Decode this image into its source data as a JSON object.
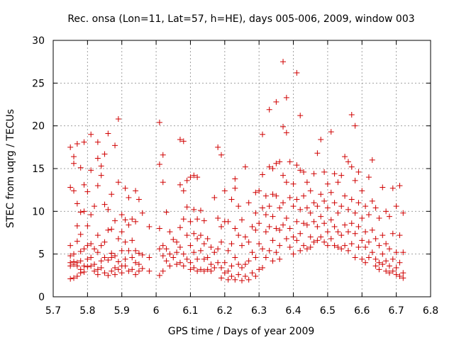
{
  "chart_data": {
    "type": "scatter",
    "title": "Rec. onsa (Lon=11, Lat=57, h=HE), days 005-006, 2009, window 003",
    "xlabel": "GPS time / Days of year 2009",
    "ylabel": "STEC from uqrg / TECUs",
    "xlim": [
      5.7,
      6.8
    ],
    "ylim": [
      0,
      30
    ],
    "xticks": [
      "5.7",
      "5.8",
      "5.9",
      "6",
      "6.1",
      "6.2",
      "6.3",
      "6.4",
      "6.5",
      "6.6",
      "6.7",
      "6.8"
    ],
    "yticks": [
      "0",
      "5",
      "10",
      "15",
      "20",
      "25",
      "30"
    ],
    "grid": true,
    "marker": "+",
    "colors": {
      "points": "#d00000",
      "axes": "#000000",
      "grid": "#a0a0a0"
    },
    "points": [
      [
        5.75,
        17.5
      ],
      [
        5.75,
        12.8
      ],
      [
        5.75,
        6.0
      ],
      [
        5.75,
        4.8
      ],
      [
        5.75,
        4.0
      ],
      [
        5.75,
        3.6
      ],
      [
        5.75,
        2.1
      ],
      [
        5.76,
        16.4
      ],
      [
        5.76,
        15.6
      ],
      [
        5.76,
        12.4
      ],
      [
        5.76,
        5.0
      ],
      [
        5.76,
        4.1
      ],
      [
        5.76,
        3.8
      ],
      [
        5.76,
        2.2
      ],
      [
        5.77,
        17.9
      ],
      [
        5.77,
        10.9
      ],
      [
        5.77,
        8.3
      ],
      [
        5.77,
        6.5
      ],
      [
        5.77,
        4.0
      ],
      [
        5.77,
        3.6
      ],
      [
        5.77,
        2.4
      ],
      [
        5.78,
        15.1
      ],
      [
        5.78,
        9.9
      ],
      [
        5.78,
        7.3
      ],
      [
        5.78,
        5.3
      ],
      [
        5.78,
        4.2
      ],
      [
        5.78,
        3.2
      ],
      [
        5.78,
        2.8
      ],
      [
        5.79,
        18.1
      ],
      [
        5.79,
        13.1
      ],
      [
        5.79,
        10.0
      ],
      [
        5.79,
        5.6
      ],
      [
        5.79,
        3.6
      ],
      [
        5.79,
        2.9
      ],
      [
        5.8,
        12.3
      ],
      [
        5.8,
        8.3
      ],
      [
        5.8,
        6.0
      ],
      [
        5.8,
        4.4
      ],
      [
        5.8,
        3.5
      ],
      [
        5.81,
        19.0
      ],
      [
        5.81,
        14.8
      ],
      [
        5.81,
        9.6
      ],
      [
        5.81,
        6.2
      ],
      [
        5.81,
        4.6
      ],
      [
        5.81,
        3.6
      ],
      [
        5.82,
        10.6
      ],
      [
        5.82,
        5.6
      ],
      [
        5.82,
        3.8
      ],
      [
        5.82,
        3.0
      ],
      [
        5.83,
        18.1
      ],
      [
        5.83,
        16.2
      ],
      [
        5.83,
        13.0
      ],
      [
        5.83,
        7.2
      ],
      [
        5.83,
        5.2
      ],
      [
        5.83,
        3.2
      ],
      [
        5.83,
        2.6
      ],
      [
        5.84,
        15.3
      ],
      [
        5.84,
        14.2
      ],
      [
        5.84,
        6.0
      ],
      [
        5.84,
        4.2
      ],
      [
        5.84,
        3.4
      ],
      [
        5.85,
        16.7
      ],
      [
        5.85,
        10.8
      ],
      [
        5.85,
        6.4
      ],
      [
        5.85,
        4.6
      ],
      [
        5.85,
        2.8
      ],
      [
        5.86,
        19.1
      ],
      [
        5.86,
        10.2
      ],
      [
        5.86,
        7.8
      ],
      [
        5.86,
        4.3
      ],
      [
        5.86,
        2.5
      ],
      [
        5.87,
        12.0
      ],
      [
        5.87,
        7.9
      ],
      [
        5.87,
        5.1
      ],
      [
        5.87,
        4.6
      ],
      [
        5.87,
        3.0
      ],
      [
        5.88,
        17.7
      ],
      [
        5.88,
        8.9
      ],
      [
        5.88,
        4.8
      ],
      [
        5.88,
        3.4
      ],
      [
        5.88,
        2.6
      ],
      [
        5.89,
        20.8
      ],
      [
        5.89,
        13.4
      ],
      [
        5.89,
        6.8
      ],
      [
        5.89,
        4.1
      ],
      [
        5.89,
        3.2
      ],
      [
        5.9,
        9.6
      ],
      [
        5.9,
        7.6
      ],
      [
        5.9,
        5.4
      ],
      [
        5.9,
        3.6
      ],
      [
        5.9,
        2.8
      ],
      [
        5.91,
        12.7
      ],
      [
        5.91,
        9.0
      ],
      [
        5.91,
        6.4
      ],
      [
        5.91,
        4.4
      ],
      [
        5.91,
        3.6
      ],
      [
        5.92,
        11.6
      ],
      [
        5.92,
        8.4
      ],
      [
        5.92,
        5.4
      ],
      [
        5.92,
        3.0
      ],
      [
        5.93,
        9.1
      ],
      [
        5.93,
        6.6
      ],
      [
        5.93,
        4.6
      ],
      [
        5.93,
        3.2
      ],
      [
        5.94,
        12.4
      ],
      [
        5.94,
        8.8
      ],
      [
        5.94,
        5.4
      ],
      [
        5.94,
        4.0
      ],
      [
        5.94,
        2.6
      ],
      [
        5.95,
        11.4
      ],
      [
        5.95,
        5.1
      ],
      [
        5.95,
        3.8
      ],
      [
        5.95,
        3.0
      ],
      [
        5.96,
        9.8
      ],
      [
        5.96,
        4.9
      ],
      [
        5.96,
        3.3
      ],
      [
        5.98,
        8.2
      ],
      [
        5.98,
        4.6
      ],
      [
        5.98,
        3.0
      ],
      [
        6.01,
        20.4
      ],
      [
        6.01,
        15.5
      ],
      [
        6.01,
        8.0
      ],
      [
        6.01,
        5.6
      ],
      [
        6.01,
        2.5
      ],
      [
        6.02,
        16.6
      ],
      [
        6.02,
        13.4
      ],
      [
        6.02,
        6.0
      ],
      [
        6.02,
        4.8
      ],
      [
        6.02,
        3.0
      ],
      [
        6.03,
        9.9
      ],
      [
        6.03,
        5.6
      ],
      [
        6.03,
        4.2
      ],
      [
        6.04,
        7.6
      ],
      [
        6.04,
        5.0
      ],
      [
        6.04,
        3.6
      ],
      [
        6.05,
        6.7
      ],
      [
        6.05,
        4.6
      ],
      [
        6.06,
        6.4
      ],
      [
        6.06,
        5.2
      ],
      [
        6.06,
        3.8
      ],
      [
        6.07,
        18.4
      ],
      [
        6.07,
        13.1
      ],
      [
        6.07,
        8.1
      ],
      [
        6.07,
        5.8
      ],
      [
        6.07,
        4.0
      ],
      [
        6.08,
        18.2
      ],
      [
        6.08,
        12.4
      ],
      [
        6.08,
        9.1
      ],
      [
        6.08,
        5.0
      ],
      [
        6.08,
        3.6
      ],
      [
        6.09,
        13.6
      ],
      [
        6.09,
        10.5
      ],
      [
        6.09,
        7.2
      ],
      [
        6.09,
        4.4
      ],
      [
        6.1,
        14.0
      ],
      [
        6.1,
        8.8
      ],
      [
        6.1,
        6.0
      ],
      [
        6.1,
        4.0
      ],
      [
        6.1,
        3.2
      ],
      [
        6.11,
        14.2
      ],
      [
        6.11,
        10.2
      ],
      [
        6.11,
        7.4
      ],
      [
        6.11,
        5.2
      ],
      [
        6.11,
        3.4
      ],
      [
        6.12,
        14.0
      ],
      [
        6.12,
        9.1
      ],
      [
        6.12,
        6.8
      ],
      [
        6.12,
        4.4
      ],
      [
        6.12,
        3.0
      ],
      [
        6.13,
        10.1
      ],
      [
        6.13,
        7.2
      ],
      [
        6.13,
        5.4
      ],
      [
        6.13,
        3.2
      ],
      [
        6.14,
        8.9
      ],
      [
        6.14,
        6.2
      ],
      [
        6.14,
        4.4
      ],
      [
        6.14,
        3.0
      ],
      [
        6.15,
        6.8
      ],
      [
        6.15,
        4.6
      ],
      [
        6.15,
        3.2
      ],
      [
        6.16,
        5.8
      ],
      [
        6.16,
        3.8
      ],
      [
        6.16,
        3.0
      ],
      [
        6.17,
        11.6
      ],
      [
        6.17,
        5.2
      ],
      [
        6.17,
        3.4
      ],
      [
        6.18,
        17.5
      ],
      [
        6.18,
        9.2
      ],
      [
        6.18,
        5.6
      ],
      [
        6.18,
        4.0
      ],
      [
        6.19,
        16.6
      ],
      [
        6.19,
        8.2
      ],
      [
        6.19,
        6.4
      ],
      [
        6.19,
        3.4
      ],
      [
        6.19,
        2.2
      ],
      [
        6.2,
        12.4
      ],
      [
        6.2,
        8.8
      ],
      [
        6.2,
        4.0
      ],
      [
        6.2,
        2.8
      ],
      [
        6.21,
        8.8
      ],
      [
        6.21,
        5.4
      ],
      [
        6.21,
        3.0
      ],
      [
        6.21,
        2.0
      ],
      [
        6.22,
        11.4
      ],
      [
        6.22,
        6.2
      ],
      [
        6.22,
        3.6
      ],
      [
        6.22,
        2.4
      ],
      [
        6.23,
        13.8
      ],
      [
        6.23,
        12.7
      ],
      [
        6.23,
        8.0
      ],
      [
        6.23,
        4.6
      ],
      [
        6.23,
        2.0
      ],
      [
        6.24,
        10.6
      ],
      [
        6.24,
        7.2
      ],
      [
        6.24,
        3.8
      ],
      [
        6.24,
        2.6
      ],
      [
        6.25,
        9.0
      ],
      [
        6.25,
        6.0
      ],
      [
        6.25,
        3.4
      ],
      [
        6.25,
        1.9
      ],
      [
        6.26,
        15.2
      ],
      [
        6.26,
        7.0
      ],
      [
        6.26,
        3.8
      ],
      [
        6.26,
        2.4
      ],
      [
        6.27,
        11.0
      ],
      [
        6.27,
        6.4
      ],
      [
        6.27,
        4.2
      ],
      [
        6.27,
        2.0
      ],
      [
        6.28,
        8.2
      ],
      [
        6.28,
        5.2
      ],
      [
        6.28,
        2.8
      ],
      [
        6.29,
        12.2
      ],
      [
        6.29,
        9.8
      ],
      [
        6.29,
        7.8
      ],
      [
        6.29,
        4.6
      ],
      [
        6.29,
        2.4
      ],
      [
        6.3,
        12.4
      ],
      [
        6.3,
        8.6
      ],
      [
        6.3,
        6.2
      ],
      [
        6.3,
        3.2
      ],
      [
        6.31,
        19.0
      ],
      [
        6.31,
        14.3
      ],
      [
        6.31,
        10.4
      ],
      [
        6.31,
        5.6
      ],
      [
        6.31,
        3.4
      ],
      [
        6.32,
        11.8
      ],
      [
        6.32,
        9.6
      ],
      [
        6.32,
        7.6
      ],
      [
        6.32,
        4.6
      ],
      [
        6.33,
        21.9
      ],
      [
        6.33,
        15.2
      ],
      [
        6.33,
        10.6
      ],
      [
        6.33,
        8.2
      ],
      [
        6.33,
        5.4
      ],
      [
        6.34,
        15.0
      ],
      [
        6.34,
        12.0
      ],
      [
        6.34,
        9.4
      ],
      [
        6.34,
        6.6
      ],
      [
        6.34,
        4.2
      ],
      [
        6.35,
        22.8
      ],
      [
        6.35,
        15.6
      ],
      [
        6.35,
        11.8
      ],
      [
        6.35,
        8.0
      ],
      [
        6.35,
        5.2
      ],
      [
        6.36,
        15.8
      ],
      [
        6.36,
        10.4
      ],
      [
        6.36,
        7.8
      ],
      [
        6.36,
        6.0
      ],
      [
        6.36,
        4.4
      ],
      [
        6.37,
        27.5
      ],
      [
        6.37,
        19.9
      ],
      [
        6.37,
        14.2
      ],
      [
        6.37,
        11.0
      ],
      [
        6.37,
        8.4
      ],
      [
        6.38,
        23.3
      ],
      [
        6.38,
        19.2
      ],
      [
        6.38,
        13.4
      ],
      [
        6.38,
        9.2
      ],
      [
        6.38,
        6.8
      ],
      [
        6.39,
        15.8
      ],
      [
        6.39,
        11.6
      ],
      [
        6.39,
        8.0
      ],
      [
        6.39,
        5.8
      ],
      [
        6.4,
        13.2
      ],
      [
        6.4,
        10.6
      ],
      [
        6.4,
        7.0
      ],
      [
        6.4,
        5.0
      ],
      [
        6.41,
        26.2
      ],
      [
        6.41,
        15.4
      ],
      [
        6.41,
        11.4
      ],
      [
        6.41,
        8.8
      ],
      [
        6.41,
        6.6
      ],
      [
        6.42,
        21.2
      ],
      [
        6.42,
        14.8
      ],
      [
        6.42,
        10.2
      ],
      [
        6.42,
        7.4
      ],
      [
        6.42,
        5.4
      ],
      [
        6.43,
        14.6
      ],
      [
        6.43,
        11.8
      ],
      [
        6.43,
        8.6
      ],
      [
        6.43,
        6.0
      ],
      [
        6.44,
        13.4
      ],
      [
        6.44,
        10.4
      ],
      [
        6.44,
        8.4
      ],
      [
        6.44,
        5.6
      ],
      [
        6.45,
        12.4
      ],
      [
        6.45,
        9.8
      ],
      [
        6.45,
        7.0
      ],
      [
        6.45,
        5.8
      ],
      [
        6.46,
        14.4
      ],
      [
        6.46,
        11.0
      ],
      [
        6.46,
        8.8
      ],
      [
        6.46,
        6.4
      ],
      [
        6.47,
        16.8
      ],
      [
        6.47,
        10.6
      ],
      [
        6.47,
        8.2
      ],
      [
        6.47,
        6.6
      ],
      [
        6.48,
        18.4
      ],
      [
        6.48,
        12.0
      ],
      [
        6.48,
        9.4
      ],
      [
        6.48,
        7.0
      ],
      [
        6.49,
        14.6
      ],
      [
        6.49,
        11.2
      ],
      [
        6.49,
        8.6
      ],
      [
        6.49,
        6.4
      ],
      [
        6.5,
        13.2
      ],
      [
        6.5,
        10.4
      ],
      [
        6.5,
        7.6
      ],
      [
        6.5,
        6.0
      ],
      [
        6.51,
        19.3
      ],
      [
        6.51,
        12.2
      ],
      [
        6.51,
        9.0
      ],
      [
        6.51,
        6.8
      ],
      [
        6.52,
        14.4
      ],
      [
        6.52,
        11.0
      ],
      [
        6.52,
        8.2
      ],
      [
        6.52,
        6.0
      ],
      [
        6.53,
        13.4
      ],
      [
        6.53,
        9.8
      ],
      [
        6.53,
        7.6
      ],
      [
        6.53,
        5.8
      ],
      [
        6.54,
        14.2
      ],
      [
        6.54,
        10.6
      ],
      [
        6.54,
        7.2
      ],
      [
        6.54,
        5.6
      ],
      [
        6.55,
        16.4
      ],
      [
        6.55,
        11.8
      ],
      [
        6.55,
        8.4
      ],
      [
        6.55,
        6.0
      ],
      [
        6.56,
        15.8
      ],
      [
        6.56,
        10.2
      ],
      [
        6.56,
        7.6
      ],
      [
        6.56,
        5.4
      ],
      [
        6.57,
        21.3
      ],
      [
        6.57,
        15.2
      ],
      [
        6.57,
        11.4
      ],
      [
        6.57,
        8.6
      ],
      [
        6.57,
        6.2
      ],
      [
        6.58,
        20.0
      ],
      [
        6.58,
        13.6
      ],
      [
        6.58,
        9.8
      ],
      [
        6.58,
        7.4
      ],
      [
        6.58,
        4.6
      ],
      [
        6.59,
        14.6
      ],
      [
        6.59,
        11.0
      ],
      [
        6.59,
        8.2
      ],
      [
        6.59,
        5.8
      ],
      [
        6.6,
        12.4
      ],
      [
        6.6,
        9.2
      ],
      [
        6.6,
        6.6
      ],
      [
        6.6,
        4.4
      ],
      [
        6.61,
        10.6
      ],
      [
        6.61,
        7.6
      ],
      [
        6.61,
        5.8
      ],
      [
        6.61,
        4.0
      ],
      [
        6.62,
        14.0
      ],
      [
        6.62,
        9.6
      ],
      [
        6.62,
        6.4
      ],
      [
        6.62,
        4.6
      ],
      [
        6.63,
        16.0
      ],
      [
        6.63,
        11.2
      ],
      [
        6.63,
        7.8
      ],
      [
        6.63,
        5.2
      ],
      [
        6.64,
        10.4
      ],
      [
        6.64,
        6.8
      ],
      [
        6.64,
        4.4
      ],
      [
        6.64,
        3.6
      ],
      [
        6.65,
        9.2
      ],
      [
        6.65,
        6.0
      ],
      [
        6.65,
        4.0
      ],
      [
        6.65,
        3.2
      ],
      [
        6.66,
        12.8
      ],
      [
        6.66,
        7.2
      ],
      [
        6.66,
        5.0
      ],
      [
        6.66,
        3.8
      ],
      [
        6.67,
        10.0
      ],
      [
        6.67,
        6.2
      ],
      [
        6.67,
        4.2
      ],
      [
        6.67,
        3.0
      ],
      [
        6.68,
        9.4
      ],
      [
        6.68,
        5.6
      ],
      [
        6.68,
        3.6
      ],
      [
        6.68,
        2.8
      ],
      [
        6.69,
        12.7
      ],
      [
        6.69,
        7.4
      ],
      [
        6.69,
        4.4
      ],
      [
        6.69,
        3.0
      ],
      [
        6.7,
        10.6
      ],
      [
        6.7,
        5.2
      ],
      [
        6.7,
        3.4
      ],
      [
        6.7,
        2.6
      ],
      [
        6.71,
        13.0
      ],
      [
        6.71,
        7.2
      ],
      [
        6.71,
        4.0
      ],
      [
        6.71,
        2.4
      ],
      [
        6.72,
        9.8
      ],
      [
        6.72,
        5.2
      ],
      [
        6.72,
        2.8
      ],
      [
        6.72,
        2.2
      ]
    ]
  }
}
